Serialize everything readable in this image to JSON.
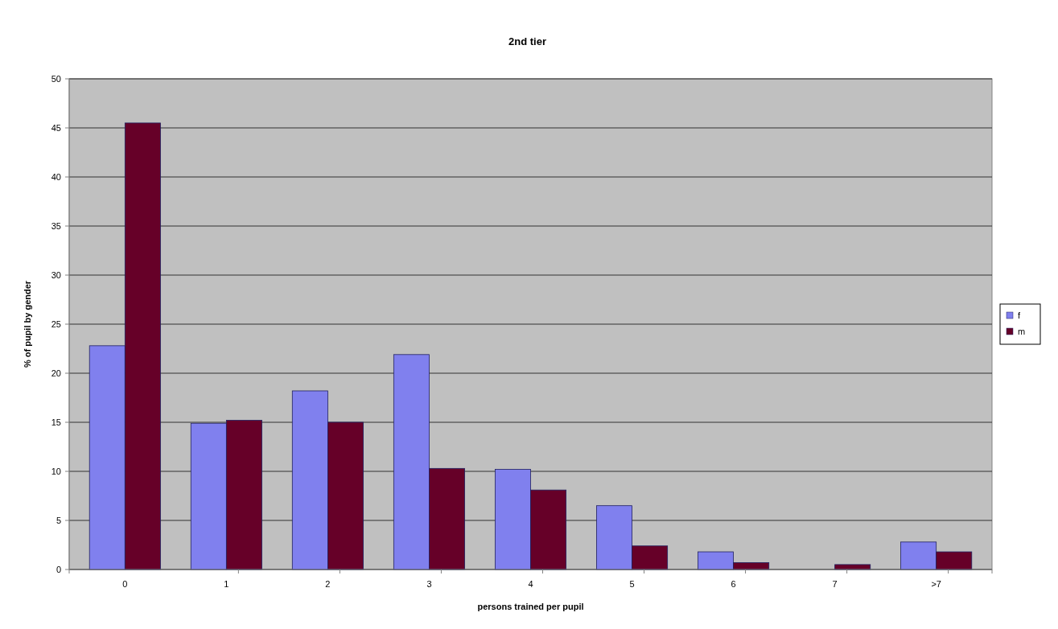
{
  "chart_data": {
    "type": "bar",
    "title": "2nd tier",
    "xlabel": "persons trained per pupil",
    "ylabel": "% of pupil by  gender",
    "categories": [
      "0",
      "1",
      "2",
      "3",
      "4",
      "5",
      "6",
      "7",
      ">7"
    ],
    "series": [
      {
        "name": "f",
        "color": "#8080ee",
        "values": [
          22.8,
          14.9,
          18.2,
          21.9,
          10.2,
          6.5,
          1.8,
          0,
          2.8
        ]
      },
      {
        "name": "m",
        "color": "#660028",
        "values": [
          45.5,
          15.2,
          15,
          10.3,
          8.1,
          2.4,
          0.7,
          0.5,
          1.8
        ]
      }
    ],
    "ylim": [
      0,
      50
    ],
    "yticks": [
      0,
      5,
      10,
      15,
      20,
      25,
      30,
      35,
      40,
      45,
      50
    ],
    "grid": "y",
    "legend": "right"
  }
}
